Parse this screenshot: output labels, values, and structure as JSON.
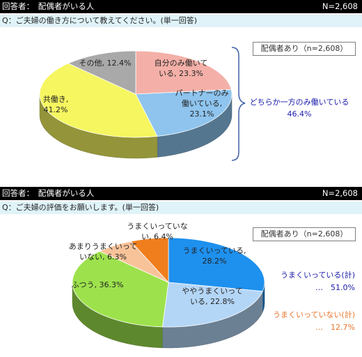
{
  "sections": [
    {
      "header": {
        "left": "回答者：　配偶者がいる人",
        "right": "N=2,608"
      },
      "question": "Q：ご夫婦の働き方について教えてください。(単一回答)",
      "legend_box": "配偶者あり（n=2,608）",
      "brace_label": {
        "line1": "どちらか一方のみ働いている",
        "line2": "46.4%"
      }
    },
    {
      "header": {
        "left": "回答者：　配偶者がいる人",
        "right": "N=2,608"
      },
      "question": "Q：ご夫婦の評価をお願いします。(単一回答)",
      "legend_box": "配偶者あり（n=2,608）",
      "sum_good": {
        "label": "うまくいっている(計)",
        "value": "…　51.0%"
      },
      "sum_bad": {
        "label": "うまくいっていない(計)",
        "value": "…　12.7%"
      },
      "colors": {
        "good": "#1a1aaa",
        "bad": "#e8742a"
      }
    }
  ],
  "chart_data": [
    {
      "type": "pie",
      "slices": [
        {
          "name": "自分のみ働いている",
          "value": 23.3,
          "label": [
            "自分のみ働いて",
            "いる, 23.3%"
          ],
          "color": "#f4b0a8"
        },
        {
          "name": "パートナーのみ働いている",
          "value": 23.1,
          "label": [
            "パートナーのみ",
            "働いている,",
            "23.1%"
          ],
          "color": "#8ec4ee"
        },
        {
          "name": "共働き",
          "value": 41.2,
          "label": [
            "共働き,",
            "41.2%"
          ],
          "color": "#f6f660"
        },
        {
          "name": "その他",
          "value": 12.4,
          "label": [
            "その他, 12.4%"
          ],
          "color": "#a9a9a9"
        }
      ]
    },
    {
      "type": "pie",
      "slices": [
        {
          "name": "うまくいっている",
          "value": 28.2,
          "label": [
            "うまくいっている,",
            "28.2%"
          ],
          "color": "#1e90ee"
        },
        {
          "name": "ややうまくいっている",
          "value": 22.8,
          "label": [
            "ややうまくいって",
            "いる, 22.8%"
          ],
          "color": "#b4d6f6"
        },
        {
          "name": "ふつう",
          "value": 36.3,
          "label": [
            "ふつう, 36.3%"
          ],
          "color": "#9de24c"
        },
        {
          "name": "あまりうまくいっていない",
          "value": 6.3,
          "label": [
            "あまりうまくいって",
            "いない, 6.3%"
          ],
          "color": "#f9c39a"
        },
        {
          "name": "うまくいっていない",
          "value": 6.4,
          "label": [
            "うまくいっていな",
            "い, 6.4%"
          ],
          "color": "#f07e1c"
        }
      ]
    }
  ]
}
